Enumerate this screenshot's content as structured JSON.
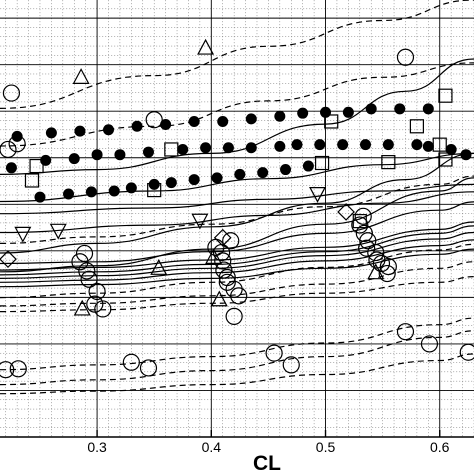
{
  "chart_data": {
    "type": "scatter",
    "xlabel": "CL",
    "ylabel": "",
    "xlim": [
      0.215,
      0.63
    ],
    "ylim": [
      0,
      100
    ],
    "grid": true,
    "grid_minor": true,
    "x_ticks": [
      {
        "value": 0.3,
        "label": "0.3"
      },
      {
        "value": 0.4,
        "label": "0.4"
      },
      {
        "value": 0.5,
        "label": "0.5"
      },
      {
        "value": 0.6,
        "label": "0.6"
      }
    ],
    "curves": [
      {
        "style": "dashed",
        "points": [
          [
            0.215,
            75.2
          ],
          [
            0.35,
            82.7
          ],
          [
            0.45,
            89.4
          ],
          [
            0.55,
            95.3
          ],
          [
            0.63,
            100
          ]
        ]
      },
      {
        "style": "dashed",
        "points": [
          [
            0.215,
            66.6
          ],
          [
            0.35,
            71.1
          ],
          [
            0.45,
            76.9
          ],
          [
            0.55,
            82.3
          ],
          [
            0.63,
            85.6
          ]
        ]
      },
      {
        "style": "solid",
        "points": [
          [
            0.215,
            60.1
          ],
          [
            0.3,
            61.2
          ],
          [
            0.4,
            64.9
          ],
          [
            0.5,
            71.6
          ],
          [
            0.57,
            79.1
          ],
          [
            0.63,
            86.5
          ]
        ]
      },
      {
        "style": "solid",
        "points": [
          [
            0.215,
            53.9
          ],
          [
            0.35,
            56.3
          ],
          [
            0.45,
            59.1
          ],
          [
            0.55,
            62.3
          ],
          [
            0.63,
            64.9
          ]
        ]
      },
      {
        "style": "solid",
        "points": [
          [
            0.215,
            51.1
          ],
          [
            0.35,
            52.4
          ],
          [
            0.45,
            54.4
          ],
          [
            0.55,
            56.3
          ],
          [
            0.63,
            57.8
          ]
        ]
      },
      {
        "style": "solid",
        "points": [
          [
            0.215,
            46.8
          ],
          [
            0.35,
            48.5
          ],
          [
            0.45,
            50.7
          ],
          [
            0.55,
            53.5
          ],
          [
            0.63,
            56.1
          ]
        ]
      },
      {
        "style": "solid",
        "points": [
          [
            0.215,
            42.1
          ],
          [
            0.3,
            44.3
          ],
          [
            0.4,
            48.1
          ],
          [
            0.5,
            53.5
          ],
          [
            0.57,
            58.9
          ],
          [
            0.63,
            64.9
          ]
        ]
      },
      {
        "style": "solid",
        "points": [
          [
            0.215,
            37.8
          ],
          [
            0.3,
            39.2
          ],
          [
            0.4,
            43.0
          ],
          [
            0.5,
            48.7
          ],
          [
            0.6,
            56.3
          ],
          [
            0.63,
            59.3
          ]
        ]
      },
      {
        "style": "solid",
        "points": [
          [
            0.215,
            39.7
          ],
          [
            0.3,
            40.1
          ],
          [
            0.4,
            42.4
          ],
          [
            0.5,
            46.6
          ],
          [
            0.6,
            51.9
          ],
          [
            0.63,
            53.8
          ]
        ]
      },
      {
        "style": "dashed",
        "points": [
          [
            0.215,
            44.3
          ],
          [
            0.3,
            45.8
          ],
          [
            0.4,
            48.7
          ],
          [
            0.5,
            52.7
          ],
          [
            0.6,
            57.8
          ],
          [
            0.63,
            59.7
          ]
        ]
      },
      {
        "style": "solid",
        "points": [
          [
            0.215,
            38.2
          ],
          [
            0.3,
            38.8
          ],
          [
            0.4,
            40.5
          ],
          [
            0.5,
            43.4
          ],
          [
            0.6,
            47.5
          ],
          [
            0.63,
            49.2
          ]
        ]
      },
      {
        "style": "solid",
        "points": [
          [
            0.215,
            37.1
          ],
          [
            0.3,
            37.8
          ],
          [
            0.4,
            39.5
          ],
          [
            0.5,
            42.4
          ],
          [
            0.6,
            46.6
          ],
          [
            0.63,
            48.3
          ]
        ]
      },
      {
        "style": "solid",
        "points": [
          [
            0.215,
            36.3
          ],
          [
            0.3,
            36.9
          ],
          [
            0.4,
            38.6
          ],
          [
            0.5,
            41.5
          ],
          [
            0.6,
            45.3
          ],
          [
            0.63,
            46.8
          ]
        ]
      },
      {
        "style": "solid",
        "points": [
          [
            0.215,
            35.4
          ],
          [
            0.3,
            35.9
          ],
          [
            0.4,
            37.6
          ],
          [
            0.5,
            40.3
          ],
          [
            0.6,
            43.8
          ],
          [
            0.63,
            45.1
          ]
        ]
      },
      {
        "style": "solid",
        "points": [
          [
            0.215,
            34.4
          ],
          [
            0.3,
            34.9
          ],
          [
            0.4,
            36.3
          ],
          [
            0.5,
            38.6
          ],
          [
            0.6,
            41.8
          ],
          [
            0.63,
            43.0
          ]
        ]
      },
      {
        "style": "dashed",
        "points": [
          [
            0.215,
            31.9
          ],
          [
            0.3,
            32.9
          ],
          [
            0.4,
            35.4
          ],
          [
            0.5,
            38.8
          ],
          [
            0.6,
            42.8
          ],
          [
            0.63,
            44.1
          ]
        ]
      },
      {
        "style": "dashed",
        "points": [
          [
            0.215,
            30.0
          ],
          [
            0.3,
            30.6
          ],
          [
            0.4,
            32.3
          ],
          [
            0.5,
            35.0
          ],
          [
            0.6,
            38.6
          ],
          [
            0.63,
            40.1
          ]
        ]
      },
      {
        "style": "dashed",
        "points": [
          [
            0.215,
            28.7
          ],
          [
            0.3,
            29.1
          ],
          [
            0.4,
            30.6
          ],
          [
            0.5,
            32.9
          ],
          [
            0.6,
            35.4
          ],
          [
            0.63,
            36.7
          ]
        ]
      },
      {
        "style": "dashed",
        "points": [
          [
            0.215,
            12.0
          ],
          [
            0.3,
            13.1
          ],
          [
            0.4,
            15.2
          ],
          [
            0.5,
            18.4
          ],
          [
            0.6,
            22.8
          ],
          [
            0.63,
            24.3
          ]
        ]
      },
      {
        "style": "dashed",
        "points": [
          [
            0.215,
            9.9
          ],
          [
            0.3,
            10.5
          ],
          [
            0.4,
            12.0
          ],
          [
            0.5,
            14.3
          ],
          [
            0.6,
            17.5
          ],
          [
            0.63,
            19.0
          ]
        ]
      },
      {
        "style": "dashed",
        "points": [
          [
            0.215,
            15.4
          ],
          [
            0.3,
            16.5
          ],
          [
            0.4,
            18.4
          ],
          [
            0.5,
            21.5
          ],
          [
            0.6,
            25.7
          ],
          [
            0.63,
            27.2
          ]
        ]
      }
    ],
    "markers": [
      {
        "shape": "triangle",
        "points": [
          [
            0.395,
            89.0
          ],
          [
            0.286,
            82.3
          ],
          [
            0.354,
            38.6
          ],
          [
            0.287,
            29.3
          ],
          [
            0.407,
            31.4
          ],
          [
            0.402,
            41.1
          ],
          [
            0.544,
            37.6
          ]
        ]
      },
      {
        "shape": "circle",
        "points": [
          [
            0.57,
            86.9
          ],
          [
            0.225,
            78.7
          ],
          [
            0.35,
            72.6
          ],
          [
            0.222,
            65.8
          ],
          [
            0.23,
            67.1
          ],
          [
            0.231,
            15.6
          ],
          [
            0.22,
            15.4
          ],
          [
            0.33,
            17.1
          ],
          [
            0.345,
            15.8
          ],
          [
            0.455,
            19.2
          ],
          [
            0.47,
            16.5
          ],
          [
            0.57,
            24.1
          ],
          [
            0.591,
            21.3
          ],
          [
            0.625,
            19.4
          ],
          [
            0.289,
            42.0
          ],
          [
            0.285,
            40.1
          ],
          [
            0.291,
            38.0
          ],
          [
            0.293,
            36.1
          ],
          [
            0.3,
            33.3
          ],
          [
            0.298,
            30.4
          ],
          [
            0.305,
            29.3
          ],
          [
            0.404,
            43.4
          ],
          [
            0.409,
            42.2
          ],
          [
            0.41,
            40.3
          ],
          [
            0.411,
            38.2
          ],
          [
            0.414,
            36.5
          ],
          [
            0.414,
            35.4
          ],
          [
            0.42,
            33.8
          ],
          [
            0.424,
            32.3
          ],
          [
            0.42,
            27.6
          ],
          [
            0.533,
            50.5
          ],
          [
            0.53,
            48.5
          ],
          [
            0.534,
            46.6
          ],
          [
            0.537,
            44.9
          ],
          [
            0.536,
            43.2
          ],
          [
            0.544,
            42.2
          ],
          [
            0.545,
            40.5
          ],
          [
            0.549,
            39.7
          ],
          [
            0.555,
            39.0
          ],
          [
            0.554,
            37.4
          ],
          [
            0.417,
            44.9
          ]
        ]
      },
      {
        "shape": "square",
        "points": [
          [
            0.605,
            78.1
          ],
          [
            0.58,
            71.1
          ],
          [
            0.505,
            72.2
          ],
          [
            0.365,
            65.8
          ],
          [
            0.6,
            66.9
          ],
          [
            0.497,
            62.7
          ],
          [
            0.247,
            62.0
          ],
          [
            0.243,
            58.7
          ],
          [
            0.35,
            56.5
          ],
          [
            0.53,
            49.4
          ],
          [
            0.605,
            63.5
          ],
          [
            0.555,
            62.9
          ]
        ]
      },
      {
        "shape": "diamond",
        "points": [
          [
            0.518,
            51.5
          ],
          [
            0.41,
            45.6
          ],
          [
            0.222,
            40.7
          ]
        ]
      },
      {
        "shape": "inverted-triangle",
        "points": [
          [
            0.493,
            55.7
          ],
          [
            0.39,
            49.6
          ],
          [
            0.266,
            47.3
          ],
          [
            0.235,
            46.6
          ]
        ]
      },
      {
        "shape": "dot",
        "points": [
          [
            0.23,
            68.8
          ],
          [
            0.26,
            69.6
          ],
          [
            0.285,
            70.0
          ],
          [
            0.31,
            70.3
          ],
          [
            0.335,
            71.1
          ],
          [
            0.36,
            71.5
          ],
          [
            0.385,
            72.2
          ],
          [
            0.41,
            72.2
          ],
          [
            0.435,
            72.8
          ],
          [
            0.46,
            73.4
          ],
          [
            0.48,
            74.1
          ],
          [
            0.5,
            74.3
          ],
          [
            0.52,
            74.3
          ],
          [
            0.54,
            75.1
          ],
          [
            0.565,
            75.1
          ],
          [
            0.59,
            75.1
          ],
          [
            0.225,
            61.6
          ],
          [
            0.255,
            63.3
          ],
          [
            0.28,
            63.7
          ],
          [
            0.3,
            64.6
          ],
          [
            0.32,
            64.6
          ],
          [
            0.345,
            65.2
          ],
          [
            0.375,
            65.8
          ],
          [
            0.395,
            66.2
          ],
          [
            0.415,
            66.2
          ],
          [
            0.435,
            66.2
          ],
          [
            0.46,
            66.5
          ],
          [
            0.475,
            66.9
          ],
          [
            0.495,
            66.9
          ],
          [
            0.515,
            66.9
          ],
          [
            0.535,
            66.9
          ],
          [
            0.555,
            66.9
          ],
          [
            0.58,
            66.9
          ],
          [
            0.59,
            66.5
          ],
          [
            0.61,
            65.8
          ],
          [
            0.623,
            64.6
          ],
          [
            0.25,
            54.9
          ],
          [
            0.275,
            55.6
          ],
          [
            0.295,
            56.1
          ],
          [
            0.315,
            56.3
          ],
          [
            0.33,
            57.0
          ],
          [
            0.35,
            57.8
          ],
          [
            0.365,
            58.2
          ],
          [
            0.385,
            58.9
          ],
          [
            0.405,
            59.3
          ],
          [
            0.425,
            60.1
          ],
          [
            0.445,
            60.5
          ],
          [
            0.465,
            61.2
          ],
          [
            0.485,
            62.0
          ]
        ]
      }
    ]
  }
}
